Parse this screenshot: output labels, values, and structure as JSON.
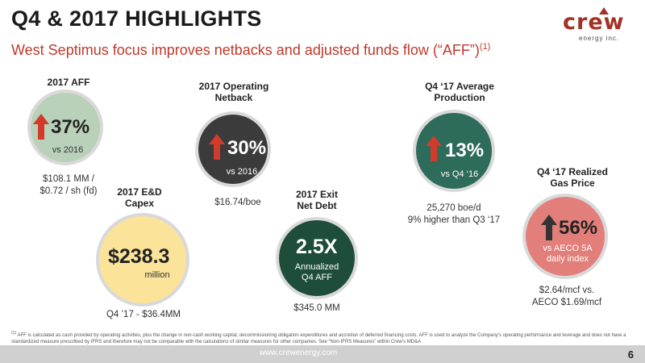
{
  "header": {
    "title": "Q4 & 2017 HIGHLIGHTS",
    "subtitle": "West Septimus focus improves netbacks and adjusted funds flow (“AFF”)",
    "subtitle_sup": "(1)",
    "logo_text": "crew",
    "logo_sub": "energy inc."
  },
  "metrics": {
    "aff": {
      "label": "2017 AFF",
      "value": "37%",
      "sub": "vs 2016",
      "note_line1": "$108.1 MM /",
      "note_line2": "$0.72 / sh (fd)"
    },
    "netback": {
      "label_line1": "2017 Operating",
      "label_line2": "Netback",
      "value": "30%",
      "sub": "vs 2016",
      "note": "$16.74/boe"
    },
    "capex": {
      "label_line1": "2017 E&D",
      "label_line2": "Capex",
      "value": "$238.3",
      "sub": "million",
      "note": "Q4 ’17 - $36.4MM"
    },
    "debt": {
      "label_line1": "2017 Exit",
      "label_line2": "Net Debt",
      "value": "2.5X",
      "sub_line1": "Annualized",
      "sub_line2": "Q4 AFF",
      "note": "$345.0 MM"
    },
    "production": {
      "label_line1": "Q4 ‘17 Average",
      "label_line2": "Production",
      "value": "13%",
      "sub": "vs Q4 ‘16",
      "note_line1": "25,270 boe/d",
      "note_line2": "9% higher than Q3 ‘17"
    },
    "gas": {
      "label_line1": "Q4 ‘17 Realized",
      "label_line2": "Gas Price",
      "value": "56%",
      "sub_line1": "vs AECO 5A",
      "sub_line2": "daily index",
      "note_line1": "$2.64/mcf vs.",
      "note_line2": "AECO $1.69/mcf"
    }
  },
  "colors": {
    "aff": "#b9d0b9",
    "netback": "#3b3b3b",
    "capex": "#fbe39a",
    "debt": "#1e4d3c",
    "production": "#2d6b5b",
    "gas": "#e27f7a",
    "arrow_red": "#d23b2c",
    "arrow_dark": "#333333"
  },
  "footnote": {
    "marker": "(1)",
    "text": "AFF is calculated as cash provided by operating activities, plus the change in non-cash working capital, decommissioning obligation expenditures and accretion of deferred financing costs.  AFF is used to analyze the Company’s operating performance and leverage and does not have a standardized measure prescribed by IFRS and therefore may not be comparable with the calculations of similar measures for other companies.  See “Non-IFRS Measures” within Crew’s MD&A"
  },
  "footer": {
    "url": "www.crewenergy.com",
    "page": "6"
  }
}
